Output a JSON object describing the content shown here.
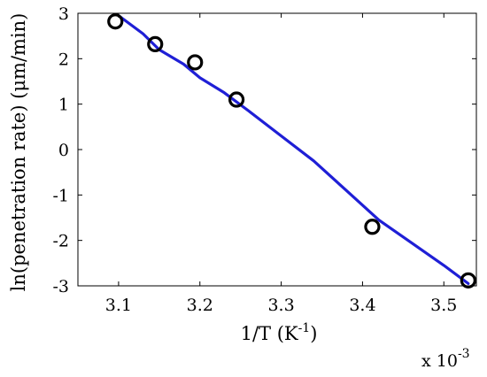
{
  "chart_data": {
    "type": "scatter",
    "title": "",
    "xlabel_main": "1/T (K",
    "xlabel_sup": "-1",
    "xlabel_close": ")",
    "ylabel": "ln(penetration rate) (μm/min)",
    "x_multiplier_label": "x 10",
    "x_multiplier_exp": "-3",
    "xlim": [
      3.05,
      3.54
    ],
    "ylim": [
      -3,
      3
    ],
    "x_ticks": [
      3.1,
      3.2,
      3.3,
      3.4,
      3.5
    ],
    "x_tick_labels": [
      "3.1",
      "3.2",
      "3.3",
      "3.4",
      "3.5"
    ],
    "y_ticks": [
      -3,
      -2,
      -1,
      0,
      1,
      2,
      3
    ],
    "y_tick_labels": [
      "-3",
      "-2",
      "-1",
      "0",
      "1",
      "2",
      "3"
    ],
    "grid": false,
    "legend": "none",
    "series": [
      {
        "kind": "markers",
        "marker": "circle-open",
        "color": "#000000",
        "x": [
          3.096,
          3.145,
          3.194,
          3.245,
          3.412,
          3.53
        ],
        "y": [
          2.82,
          2.32,
          1.92,
          1.1,
          -1.7,
          -2.88
        ]
      },
      {
        "kind": "fit-line",
        "color": "#1f1fd6",
        "x": [
          3.1,
          3.13,
          3.15,
          3.18,
          3.2,
          3.23,
          3.26,
          3.3,
          3.34,
          3.38,
          3.42,
          3.46,
          3.5,
          3.53
        ],
        "y": [
          2.95,
          2.55,
          2.2,
          1.88,
          1.58,
          1.25,
          0.85,
          0.3,
          -0.25,
          -0.9,
          -1.55,
          -2.05,
          -2.55,
          -2.95
        ]
      }
    ]
  }
}
